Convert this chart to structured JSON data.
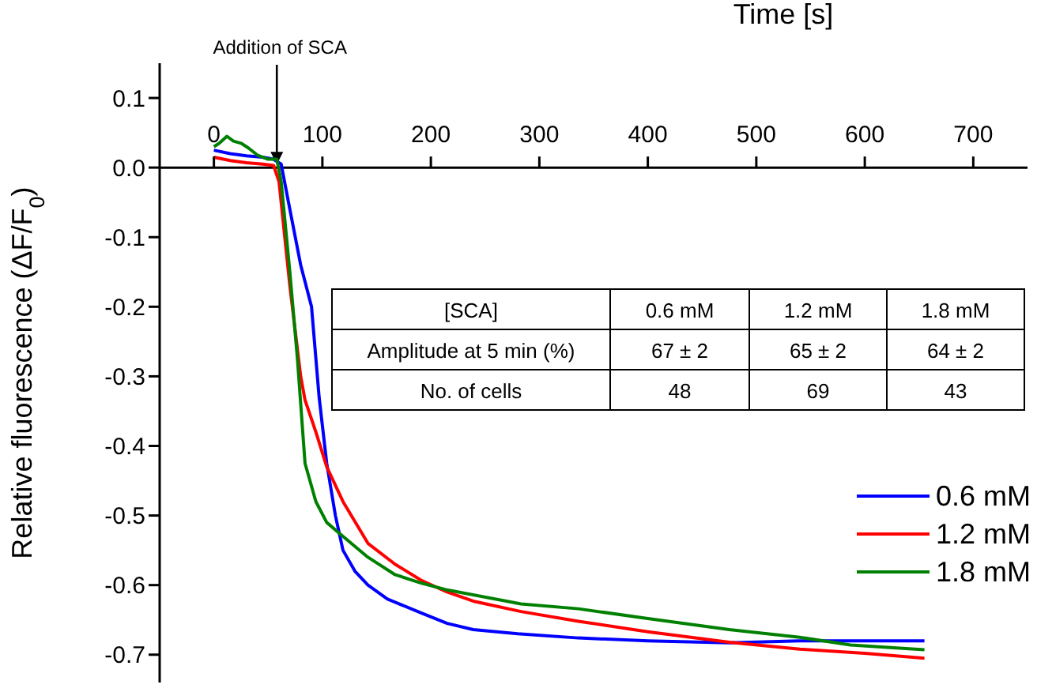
{
  "chart_data": {
    "type": "line",
    "xlabel": "Time [s]",
    "ylabel": "Relative fluorescence (ΔF/F$_{0}$)",
    "xlim": [
      -50,
      750
    ],
    "xticks": [
      0,
      100,
      200,
      300,
      400,
      500,
      600,
      700
    ],
    "ylim": [
      -0.74,
      0.15
    ],
    "yticks": [
      {
        "value": 0.1,
        "label": "0.1"
      },
      {
        "value": 0,
        "label": "0.0"
      },
      {
        "value": -0.1,
        "label": "-0.1"
      },
      {
        "value": -0.2,
        "label": "-0.2"
      },
      {
        "value": -0.3,
        "label": "-0.3"
      },
      {
        "value": -0.4,
        "label": "-0.4"
      },
      {
        "value": -0.5,
        "label": "-0.5"
      },
      {
        "value": -0.6,
        "label": "-0.6"
      },
      {
        "value": -0.7,
        "label": "-0.7"
      }
    ],
    "grid": false,
    "legend": "bottom right",
    "marker": "none",
    "line_style": "solid",
    "series": [
      {
        "name": "0.6 mM",
        "color": "#0000ff",
        "x": [
          0,
          15,
          30,
          45,
          55,
          62,
          70,
          80,
          90,
          97,
          104,
          112,
          119,
          130,
          142,
          160,
          191,
          215,
          239,
          280,
          336,
          400,
          475,
          540,
          600,
          655
        ],
        "values": [
          0.025,
          0.02,
          0.017,
          0.015,
          0.012,
          0.005,
          -0.06,
          -0.14,
          -0.2,
          -0.33,
          -0.425,
          -0.5,
          -0.55,
          -0.58,
          -0.6,
          -0.62,
          -0.64,
          -0.655,
          -0.664,
          -0.67,
          -0.676,
          -0.68,
          -0.683,
          -0.68,
          -0.68,
          -0.68
        ]
      },
      {
        "name": "1.2 mM",
        "color": "#ff0000",
        "x": [
          0,
          15,
          30,
          45,
          55,
          60,
          70,
          80,
          84,
          94,
          104,
          119,
          142,
          167,
          191,
          215,
          239,
          283,
          336,
          400,
          475,
          540,
          600,
          655
        ],
        "values": [
          0.015,
          0.01,
          0.007,
          0.005,
          0.003,
          -0.02,
          -0.17,
          -0.3,
          -0.334,
          -0.38,
          -0.43,
          -0.48,
          -0.54,
          -0.57,
          -0.593,
          -0.61,
          -0.623,
          -0.638,
          -0.652,
          -0.667,
          -0.682,
          -0.692,
          -0.698,
          -0.705
        ]
      },
      {
        "name": "1.8 mM",
        "color": "#008000",
        "x": [
          0,
          5,
          12,
          18,
          25,
          32,
          40,
          50,
          58,
          62,
          70,
          77,
          84,
          94,
          104,
          119,
          142,
          167,
          191,
          215,
          283,
          336,
          400,
          475,
          540,
          587,
          655
        ],
        "values": [
          0.03,
          0.035,
          0.045,
          0.038,
          0.035,
          0.028,
          0.018,
          0.012,
          0.012,
          -0.02,
          -0.15,
          -0.275,
          -0.425,
          -0.48,
          -0.51,
          -0.53,
          -0.56,
          -0.585,
          -0.597,
          -0.607,
          -0.627,
          -0.634,
          -0.648,
          -0.664,
          -0.675,
          -0.686,
          -0.693
        ]
      }
    ],
    "annotations": [
      {
        "text": "Addition of SCA",
        "x": 58,
        "y": 0
      },
      "[SCA]",
      "0.6 mM",
      "1.2 mM",
      "1.8 mM",
      "Amplitude at 5 min (%)",
      "67 ± 2",
      "65 ± 2",
      "64 ± 2",
      "No. of cells",
      "48",
      "69",
      "43"
    ]
  }
}
